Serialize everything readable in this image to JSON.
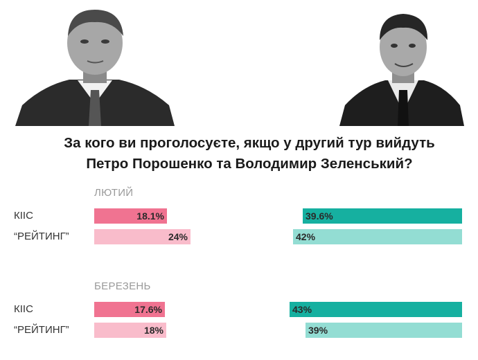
{
  "title": {
    "line1": "За кого ви проголосуєте, якщо у другий тур вийдуть",
    "line2": "Петро Порошенко та Володимир Зеленський?"
  },
  "colors": {
    "poroshenko_kiis": "#f07391",
    "poroshenko_rating": "#f9bccb",
    "zelensky_kiis": "#16b0a0",
    "zelensky_rating": "#93ddd3"
  },
  "chart_data": {
    "type": "bar",
    "title": "За кого ви проголосуєте, якщо у другий тур вийдуть Петро Порошенко та Володимир Зеленський?",
    "periods": [
      {
        "label": "ЛЮТИЙ",
        "rows": [
          {
            "label": "КІІС",
            "poroshenko": 18.1,
            "poroshenko_text": "18.1%",
            "zelensky": 39.6,
            "zelensky_text": "39.6%"
          },
          {
            "label": "“РЕЙТИНГ”",
            "poroshenko": 24,
            "poroshenko_text": "24%",
            "zelensky": 42,
            "zelensky_text": "42%"
          }
        ]
      },
      {
        "label": "БЕРЕЗЕНЬ",
        "rows": [
          {
            "label": "КІІС",
            "poroshenko": 17.6,
            "poroshenko_text": "17.6%",
            "zelensky": 43,
            "zelensky_text": "43%"
          },
          {
            "label": "“РЕЙТИНГ”",
            "poroshenko": 18,
            "poroshenko_text": "18%",
            "zelensky": 39,
            "zelensky_text": "39%"
          }
        ]
      }
    ]
  }
}
